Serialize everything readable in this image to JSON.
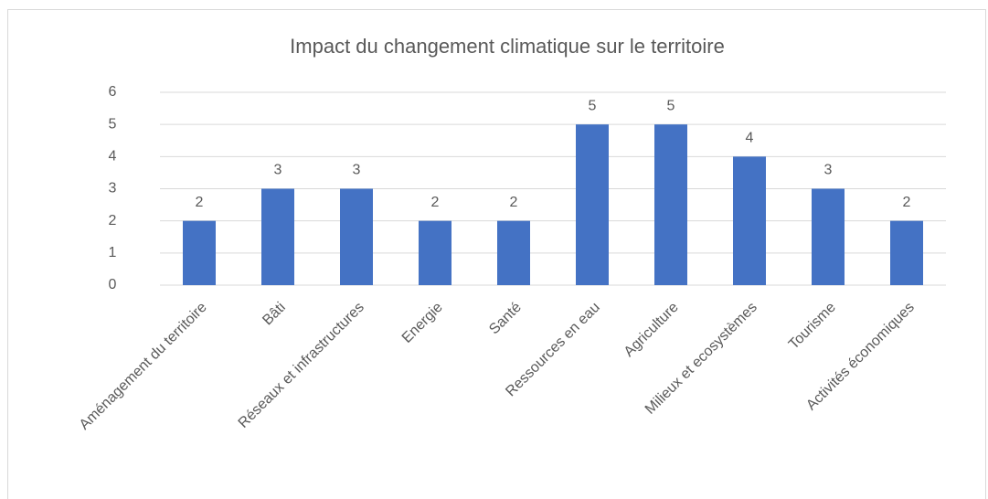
{
  "chart_data": {
    "type": "bar",
    "title": "Impact du changement climatique sur le territoire",
    "categories": [
      "Aménagement du territoire",
      "Bâti",
      "Réseaux et infrastructures",
      "Energie",
      "Santé",
      "Ressources en eau",
      "Agriculture",
      "Milieux et ecosystèmes",
      "Tourisme",
      "Activités économiques"
    ],
    "values": [
      2,
      3,
      3,
      2,
      2,
      5,
      5,
      4,
      3,
      2
    ],
    "color": "#4472c4",
    "ylim": [
      0,
      6
    ],
    "yticks": [
      0,
      1,
      2,
      3,
      4,
      5,
      6
    ],
    "grid": true
  }
}
